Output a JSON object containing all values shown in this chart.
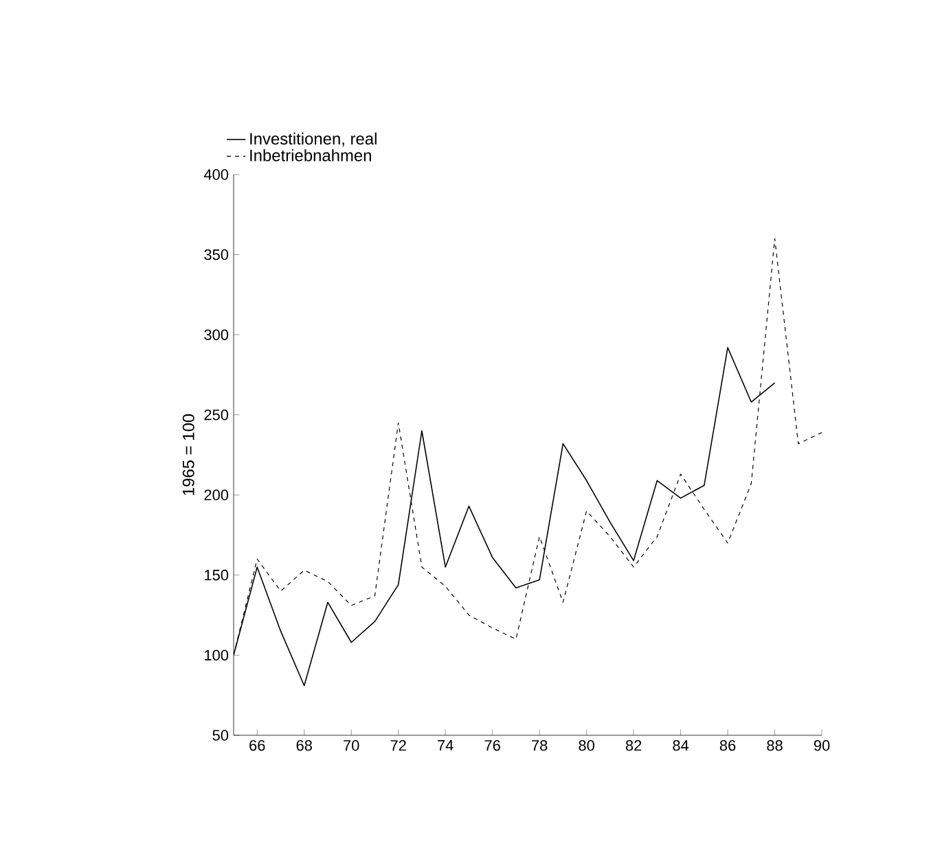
{
  "chart_data": {
    "type": "line",
    "ylabel": "1965 = 100",
    "x": [
      65,
      66,
      67,
      68,
      69,
      70,
      71,
      72,
      73,
      74,
      75,
      76,
      77,
      78,
      79,
      80,
      81,
      82,
      83,
      84,
      85,
      86,
      87,
      88,
      89,
      90
    ],
    "series": [
      {
        "name": "Investitionen, real",
        "color": "#000000",
        "line_style": "solid",
        "values": [
          100,
          155,
          115,
          81,
          133,
          108,
          121,
          144,
          240,
          155,
          193,
          161,
          142,
          147,
          232,
          209,
          183,
          159,
          209,
          198,
          206,
          292,
          258,
          270,
          null,
          null
        ]
      },
      {
        "name": "Inbetriebnahmen",
        "color": "#000000",
        "line_style": "dashed",
        "values": [
          100,
          160,
          140,
          153,
          146,
          131,
          137,
          245,
          155,
          143,
          125,
          117,
          110,
          174,
          133,
          190,
          174,
          155,
          174,
          213,
          191,
          170,
          207,
          360,
          232,
          239
        ]
      }
    ],
    "xlim": [
      65,
      90
    ],
    "xticks": [
      66,
      68,
      70,
      72,
      74,
      76,
      78,
      80,
      82,
      84,
      86,
      88,
      90
    ],
    "ylim": [
      50,
      400
    ],
    "yticks": [
      50,
      100,
      150,
      200,
      250,
      300,
      350,
      400
    ],
    "grid": false,
    "legend": "top left",
    "marker": "none"
  }
}
